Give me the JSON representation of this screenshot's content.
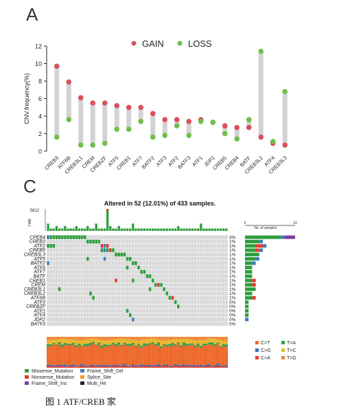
{
  "panel_a": {
    "letter": "A",
    "legend": [
      {
        "name": "GAIN",
        "color": "#d9505c"
      },
      {
        "name": "LOSS",
        "color": "#6fbf4a"
      }
    ]
  },
  "panel_c": {
    "letter": "C",
    "title": "Altered in 52 (12.01%) of 433 samples.",
    "tmb_label": "TMB",
    "tmb_max": "5612",
    "side_axis_label": "No. of samples",
    "side_axis_ticks": [
      "0",
      "10"
    ],
    "spectrum_legend": [
      {
        "name": "C>T",
        "color": "#ee6a2c"
      },
      {
        "name": "T>A",
        "color": "#2e9e4a"
      },
      {
        "name": "C>G",
        "color": "#3a6fb8"
      },
      {
        "name": "T>C",
        "color": "#e9b72e"
      },
      {
        "name": "C>A",
        "color": "#e03a2e"
      },
      {
        "name": "T>G",
        "color": "#f08a3a"
      }
    ],
    "variant_legend": [
      {
        "name": "Missense_Mutation",
        "color": "#2e9e3e"
      },
      {
        "name": "Frame_Shift_Del",
        "color": "#3a7fc1"
      },
      {
        "name": "Nonsense_Mutation",
        "color": "#e03a2e"
      },
      {
        "name": "Splice_Site",
        "color": "#f09a2a"
      },
      {
        "name": "Frame_Shift_Ins",
        "color": "#7a3fa0"
      },
      {
        "name": "Multi_Hit",
        "color": "#222222"
      }
    ]
  },
  "caption": "图 1 ATF/CREB 家",
  "chart_data": [
    {
      "type": "scatter",
      "subtype": "dumbbell",
      "ylabel": "CNV.frequency(%)",
      "ylim": [
        0,
        12
      ],
      "yticks": [
        0,
        2,
        4,
        6,
        8,
        10,
        12
      ],
      "grid": false,
      "legend_position": "top",
      "categories": [
        "CREB3",
        "ATF6B",
        "CREB3L1",
        "CREM",
        "CREBZF",
        "ATF5",
        "CREB1",
        "ATF7",
        "BATF2",
        "ATF3",
        "ATF2",
        "BATF3",
        "ATF1",
        "JDP2",
        "CREB5",
        "CREB4",
        "BATF",
        "CREB3L2",
        "ATF4",
        "CREB3L3"
      ],
      "series": [
        {
          "name": "GAIN",
          "values": [
            9.7,
            7.9,
            6.1,
            5.5,
            5.5,
            5.2,
            5.0,
            5.0,
            4.3,
            3.6,
            3.6,
            3.4,
            3.6,
            3.3,
            2.9,
            2.7,
            2.7,
            1.6,
            0.9,
            0.7
          ]
        },
        {
          "name": "LOSS",
          "values": [
            1.6,
            3.6,
            0.7,
            0.7,
            0.9,
            2.5,
            2.5,
            3.4,
            1.6,
            1.8,
            2.9,
            1.8,
            3.4,
            3.3,
            2.0,
            1.4,
            3.6,
            11.4,
            1.1,
            6.8
          ]
        }
      ]
    },
    {
      "type": "heatmap",
      "subtype": "oncoplot",
      "title": "Altered in 52 (12.01%) of 433 samples.",
      "genes": [
        "CPEB4",
        "CREB3",
        "ATF2",
        "CREB5",
        "CREB3L3",
        "ATF5",
        "BATF2",
        "ATF6",
        "ATF7",
        "BATF",
        "CREB1",
        "CREM",
        "CREB3L1",
        "CREB3L2",
        "ATF6B",
        "ATF3",
        "CREBZF",
        "ATF1",
        "ATF4",
        "JDP2",
        "BATF3"
      ],
      "percent_labels": [
        "3%",
        "1%",
        "1%",
        "1%",
        "1%",
        "1%",
        "1%",
        "1%",
        "1%",
        "1%",
        "1%",
        "1%",
        "1%",
        "1%",
        "1%",
        "0%",
        "0%",
        "0%",
        "0%",
        "0%",
        "0%"
      ],
      "n_samples_shown": 64,
      "mutations": [
        {
          "gene": 0,
          "sample": 0,
          "type": "Frame_Shift_Del"
        },
        {
          "gene": 0,
          "sample": 1,
          "type": "Missense_Mutation"
        },
        {
          "gene": 0,
          "sample": 2,
          "type": "Missense_Mutation"
        },
        {
          "gene": 0,
          "sample": 3,
          "type": "Missense_Mutation"
        },
        {
          "gene": 0,
          "sample": 4,
          "type": "Missense_Mutation"
        },
        {
          "gene": 0,
          "sample": 5,
          "type": "Missense_Mutation"
        },
        {
          "gene": 0,
          "sample": 6,
          "type": "Missense_Mutation"
        },
        {
          "gene": 0,
          "sample": 7,
          "type": "Missense_Mutation"
        },
        {
          "gene": 0,
          "sample": 8,
          "type": "Missense_Mutation"
        },
        {
          "gene": 0,
          "sample": 9,
          "type": "Missense_Mutation"
        },
        {
          "gene": 0,
          "sample": 10,
          "type": "Missense_Mutation"
        },
        {
          "gene": 0,
          "sample": 11,
          "type": "Missense_Mutation"
        },
        {
          "gene": 0,
          "sample": 12,
          "type": "Missense_Mutation"
        },
        {
          "gene": 0,
          "sample": 13,
          "type": "Missense_Mutation"
        },
        {
          "gene": 1,
          "sample": 14,
          "type": "Missense_Mutation"
        },
        {
          "gene": 1,
          "sample": 15,
          "type": "Missense_Mutation"
        },
        {
          "gene": 1,
          "sample": 16,
          "type": "Missense_Mutation"
        },
        {
          "gene": 1,
          "sample": 17,
          "type": "Missense_Mutation"
        },
        {
          "gene": 1,
          "sample": 18,
          "type": "Missense_Mutation"
        },
        {
          "gene": 2,
          "sample": 0,
          "type": "Missense_Mutation"
        },
        {
          "gene": 2,
          "sample": 1,
          "type": "Missense_Mutation"
        },
        {
          "gene": 2,
          "sample": 2,
          "type": "Missense_Mutation"
        },
        {
          "gene": 2,
          "sample": 19,
          "type": "Nonsense_Mutation"
        },
        {
          "gene": 2,
          "sample": 20,
          "type": "Frame_Shift_Del"
        },
        {
          "gene": 2,
          "sample": 21,
          "type": "Nonsense_Mutation"
        },
        {
          "gene": 3,
          "sample": 19,
          "type": "Missense_Mutation"
        },
        {
          "gene": 3,
          "sample": 20,
          "type": "Frame_Shift_Del"
        },
        {
          "gene": 3,
          "sample": 21,
          "type": "Missense_Mutation"
        },
        {
          "gene": 3,
          "sample": 22,
          "type": "Nonsense_Mutation"
        },
        {
          "gene": 3,
          "sample": 23,
          "type": "Missense_Mutation"
        },
        {
          "gene": 4,
          "sample": 24,
          "type": "Missense_Mutation"
        },
        {
          "gene": 4,
          "sample": 25,
          "type": "Missense_Mutation"
        },
        {
          "gene": 4,
          "sample": 26,
          "type": "Missense_Mutation"
        },
        {
          "gene": 4,
          "sample": 27,
          "type": "Missense_Mutation"
        },
        {
          "gene": 5,
          "sample": 14,
          "type": "Missense_Mutation"
        },
        {
          "gene": 5,
          "sample": 20,
          "type": "Frame_Shift_Del"
        },
        {
          "gene": 5,
          "sample": 28,
          "type": "Missense_Mutation"
        },
        {
          "gene": 5,
          "sample": 29,
          "type": "Missense_Mutation"
        },
        {
          "gene": 6,
          "sample": 0,
          "type": "Frame_Shift_Del"
        },
        {
          "gene": 6,
          "sample": 30,
          "type": "Missense_Mutation"
        },
        {
          "gene": 6,
          "sample": 31,
          "type": "Missense_Mutation"
        },
        {
          "gene": 7,
          "sample": 28,
          "type": "Missense_Mutation"
        },
        {
          "gene": 7,
          "sample": 32,
          "type": "Missense_Mutation"
        },
        {
          "gene": 8,
          "sample": 33,
          "type": "Missense_Mutation"
        },
        {
          "gene": 8,
          "sample": 34,
          "type": "Missense_Mutation"
        },
        {
          "gene": 9,
          "sample": 35,
          "type": "Missense_Mutation"
        },
        {
          "gene": 9,
          "sample": 36,
          "type": "Missense_Mutation"
        },
        {
          "gene": 10,
          "sample": 24,
          "type": "Nonsense_Mutation"
        },
        {
          "gene": 10,
          "sample": 30,
          "type": "Missense_Mutation"
        },
        {
          "gene": 10,
          "sample": 37,
          "type": "Missense_Mutation"
        },
        {
          "gene": 11,
          "sample": 38,
          "type": "Missense_Mutation"
        },
        {
          "gene": 11,
          "sample": 39,
          "type": "Nonsense_Mutation"
        },
        {
          "gene": 11,
          "sample": 40,
          "type": "Missense_Mutation"
        },
        {
          "gene": 12,
          "sample": 4,
          "type": "Missense_Mutation"
        },
        {
          "gene": 12,
          "sample": 36,
          "type": "Missense_Mutation"
        },
        {
          "gene": 12,
          "sample": 41,
          "type": "Missense_Mutation"
        },
        {
          "gene": 13,
          "sample": 15,
          "type": "Missense_Mutation"
        },
        {
          "gene": 13,
          "sample": 42,
          "type": "Missense_Mutation"
        },
        {
          "gene": 14,
          "sample": 16,
          "type": "Missense_Mutation"
        },
        {
          "gene": 14,
          "sample": 43,
          "type": "Missense_Mutation"
        },
        {
          "gene": 14,
          "sample": 44,
          "type": "Nonsense_Mutation"
        },
        {
          "gene": 15,
          "sample": 45,
          "type": "Missense_Mutation"
        },
        {
          "gene": 16,
          "sample": 46,
          "type": "Missense_Mutation"
        },
        {
          "gene": 17,
          "sample": 28,
          "type": "Missense_Mutation"
        },
        {
          "gene": 18,
          "sample": 29,
          "type": "Missense_Mutation"
        },
        {
          "gene": 19,
          "sample": 30,
          "type": "Frame_Shift_Del"
        }
      ],
      "side_bar_counts": [
        14,
        5,
        6,
        5,
        4,
        4,
        3,
        2,
        2,
        2,
        3,
        3,
        3,
        2,
        3,
        1,
        1,
        1,
        1,
        1,
        0
      ],
      "side_bar_nonmissense": [
        {
          "gene": 0,
          "Frame_Shift_Del": 1,
          "Frame_Shift_Ins": 3
        },
        {
          "gene": 1,
          "Frame_Shift_Del": 1
        },
        {
          "gene": 2,
          "Nonsense_Mutation": 2,
          "Frame_Shift_Del": 1
        },
        {
          "gene": 3,
          "Nonsense_Mutation": 1,
          "Frame_Shift_Del": 1
        },
        {
          "gene": 5,
          "Frame_Shift_Del": 1
        },
        {
          "gene": 6,
          "Frame_Shift_Del": 1
        },
        {
          "gene": 10,
          "Nonsense_Mutation": 1
        },
        {
          "gene": 11,
          "Nonsense_Mutation": 1
        },
        {
          "gene": 14,
          "Nonsense_Mutation": 1
        },
        {
          "gene": 19,
          "Frame_Shift_Del": 1
        }
      ],
      "tmb_bars": [
        3,
        1,
        1,
        2,
        1,
        1,
        2,
        1,
        1,
        1,
        2,
        1,
        1,
        1,
        2,
        1,
        1,
        3,
        1,
        1,
        1,
        9,
        2,
        1,
        1,
        2,
        1,
        1,
        1,
        1,
        3,
        1,
        1,
        1,
        1,
        1,
        1,
        1,
        1,
        1,
        1,
        1,
        1,
        1,
        1,
        1,
        2,
        1,
        1,
        1,
        1,
        1,
        1,
        1,
        3,
        1,
        1,
        1,
        1,
        1,
        1,
        1,
        1,
        1
      ]
    }
  ]
}
